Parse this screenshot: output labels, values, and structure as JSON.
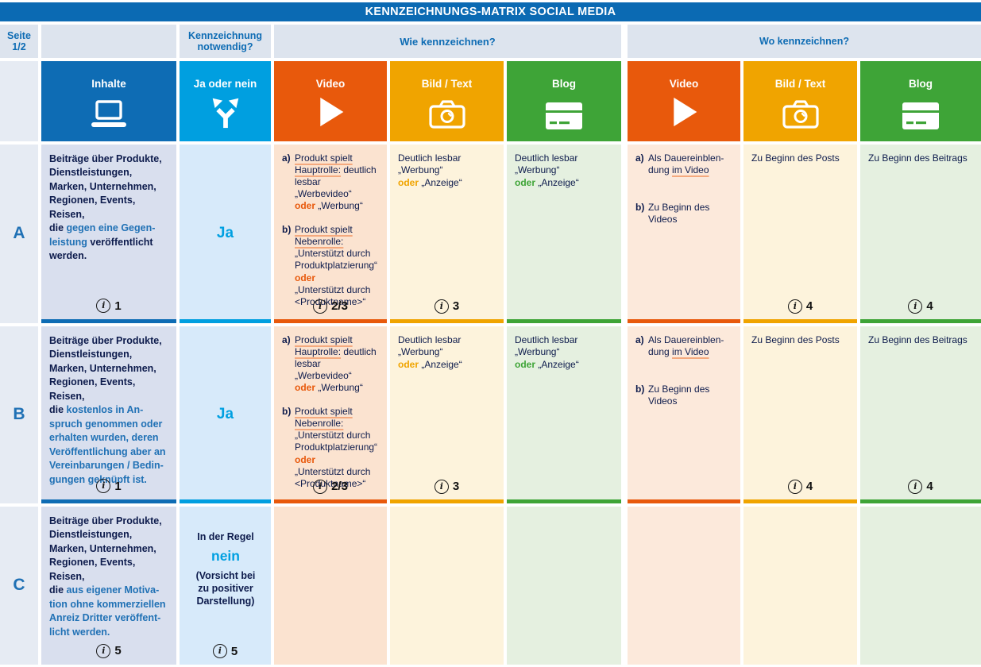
{
  "banner": {
    "title": "KENNZEICHNUNGS-MATRIX SOCIAL MEDIA"
  },
  "header": {
    "page": "Seite\n1/2",
    "necessary": "Kennzeichnung\nnotwendig?",
    "how": "Wie kennzeichnen?",
    "where": "Wo kennzeichnen?",
    "columns": [
      {
        "label": "Inhalte",
        "icon": "laptop-icon"
      },
      {
        "label": "Ja oder nein",
        "icon": "branch-icon"
      },
      {
        "label": "Video",
        "icon": "play-icon"
      },
      {
        "label": "Bild / Text",
        "icon": "camera-icon"
      },
      {
        "label": "Blog",
        "icon": "blog-icon"
      },
      {
        "label": "Video",
        "icon": "play-icon"
      },
      {
        "label": "Bild / Text",
        "icon": "camera-icon"
      },
      {
        "label": "Blog",
        "icon": "blog-icon"
      }
    ]
  },
  "colors": {
    "brand_blue": "#0e6cb4",
    "light_blue": "#009fe0",
    "orange": "#e8590c",
    "yellow": "#f0a400",
    "green": "#3ea437",
    "text_navy": "#0d1b4c",
    "highlight_blue": "#2071b5"
  },
  "rows": [
    {
      "label": "A",
      "inhalte": {
        "blocks": [
          {
            "seg": [
              {
                "t": "Beiträge über Produkte,\nDienstleistungen,\nMarken, Unternehmen,\nRegionen, Events, Reisen,\ndie "
              },
              {
                "t": "gegen eine Gegen-\nleistung",
                "s": "blue"
              },
              {
                "t": " veröffentlicht\nwerden."
              }
            ]
          }
        ],
        "info": "1"
      },
      "janein": {
        "value": "Ja"
      },
      "wie_video": {
        "blocks": [
          {
            "m": "a)",
            "seg": [
              {
                "t": "Produkt spielt\nHauptrolle:",
                "s": "u"
              },
              {
                "t": " deutlich\nlesbar „Werbevideo“\n"
              },
              {
                "t": "oder",
                "s": "accent"
              },
              {
                "t": " „Werbung“"
              }
            ]
          },
          {
            "m": "b)",
            "seg": [
              {
                "t": "Produkt spielt\nNebenrolle:",
                "s": "u"
              },
              {
                "t": "\n„Unterstützt durch\nProduktplatzierung“\n"
              },
              {
                "t": "oder",
                "s": "accent"
              },
              {
                "t": "\n„Unterstützt durch\n<Produktname>“"
              }
            ]
          }
        ],
        "info": "2/3"
      },
      "wie_bild": {
        "blocks": [
          {
            "seg": [
              {
                "t": "Deutlich lesbar\n„Werbung“\n"
              },
              {
                "t": "oder",
                "s": "accent"
              },
              {
                "t": " „Anzeige“"
              }
            ]
          }
        ],
        "info": "3"
      },
      "wie_blog": {
        "blocks": [
          {
            "seg": [
              {
                "t": "Deutlich lesbar\n„Werbung“\n"
              },
              {
                "t": "oder",
                "s": "accent"
              },
              {
                "t": " „Anzeige“"
              }
            ]
          }
        ]
      },
      "wo_video": {
        "blocks": [
          {
            "m": "a)",
            "seg": [
              {
                "t": "Als Dauereinblen-\ndung "
              },
              {
                "t": "im Video",
                "s": "u"
              }
            ]
          },
          {
            "m": "b)",
            "seg": [
              {
                "t": "Zu Beginn des\nVideos"
              }
            ]
          }
        ]
      },
      "wo_bild": {
        "blocks": [
          {
            "seg": [
              {
                "t": "Zu Beginn des Posts"
              }
            ]
          }
        ],
        "info": "4"
      },
      "wo_blog": {
        "blocks": [
          {
            "seg": [
              {
                "t": "Zu Beginn des Beitrags"
              }
            ]
          }
        ],
        "info": "4"
      }
    },
    {
      "label": "B",
      "inhalte": {
        "blocks": [
          {
            "seg": [
              {
                "t": "Beiträge über Produkte,\nDienstleistungen,\nMarken, Unternehmen,\nRegionen, Events, Reisen,\ndie "
              },
              {
                "t": "kostenlos in An-\nspruch genommen oder\nerhalten wurden, deren\nVeröffentlichung aber an\nVereinbarungen / Bedin-\ngungen geknüpft ist.",
                "s": "blue"
              }
            ]
          }
        ],
        "info": "1"
      },
      "janein": {
        "value": "Ja"
      },
      "wie_video": {
        "blocks": [
          {
            "m": "a)",
            "seg": [
              {
                "t": "Produkt spielt\nHauptrolle:",
                "s": "u"
              },
              {
                "t": " deutlich\nlesbar „Werbevideo“\n"
              },
              {
                "t": "oder",
                "s": "accent"
              },
              {
                "t": " „Werbung“"
              }
            ]
          },
          {
            "m": "b)",
            "seg": [
              {
                "t": "Produkt spielt\nNebenrolle:",
                "s": "u"
              },
              {
                "t": "\n„Unterstützt durch\nProduktplatzierung“\n"
              },
              {
                "t": "oder",
                "s": "accent"
              },
              {
                "t": "\n„Unterstützt durch\n<Produktname>“"
              }
            ]
          }
        ],
        "info": "2/3"
      },
      "wie_bild": {
        "blocks": [
          {
            "seg": [
              {
                "t": "Deutlich lesbar\n„Werbung“\n"
              },
              {
                "t": "oder",
                "s": "accent"
              },
              {
                "t": " „Anzeige“"
              }
            ]
          }
        ],
        "info": "3"
      },
      "wie_blog": {
        "blocks": [
          {
            "seg": [
              {
                "t": "Deutlich lesbar\n„Werbung“\n"
              },
              {
                "t": "oder",
                "s": "accent"
              },
              {
                "t": " „Anzeige“"
              }
            ]
          }
        ]
      },
      "wo_video": {
        "blocks": [
          {
            "m": "a)",
            "seg": [
              {
                "t": "Als Dauereinblen-\ndung "
              },
              {
                "t": "im Video",
                "s": "u"
              }
            ]
          },
          {
            "m": "b)",
            "seg": [
              {
                "t": "Zu Beginn des\nVideos"
              }
            ]
          }
        ]
      },
      "wo_bild": {
        "blocks": [
          {
            "seg": [
              {
                "t": "Zu Beginn des Posts"
              }
            ]
          }
        ],
        "info": "4"
      },
      "wo_blog": {
        "blocks": [
          {
            "seg": [
              {
                "t": "Zu Beginn des Beitrags"
              }
            ]
          }
        ],
        "info": "4"
      }
    },
    {
      "label": "C",
      "inhalte": {
        "blocks": [
          {
            "seg": [
              {
                "t": "Beiträge über Produkte,\nDienstleistungen,\nMarken, Unternehmen,\nRegionen, Events, Reisen,\ndie "
              },
              {
                "t": "aus eigener Motiva-\ntion ohne kommerziellen\nAnreiz Dritter veröffent-\nlicht werden.",
                "s": "blue"
              }
            ]
          }
        ],
        "info": "5"
      },
      "janein": {
        "pre": "In der Regel",
        "value": "nein",
        "note": "(Vorsicht bei\nzu positiver\nDarstellung)",
        "info": "5"
      }
    }
  ]
}
